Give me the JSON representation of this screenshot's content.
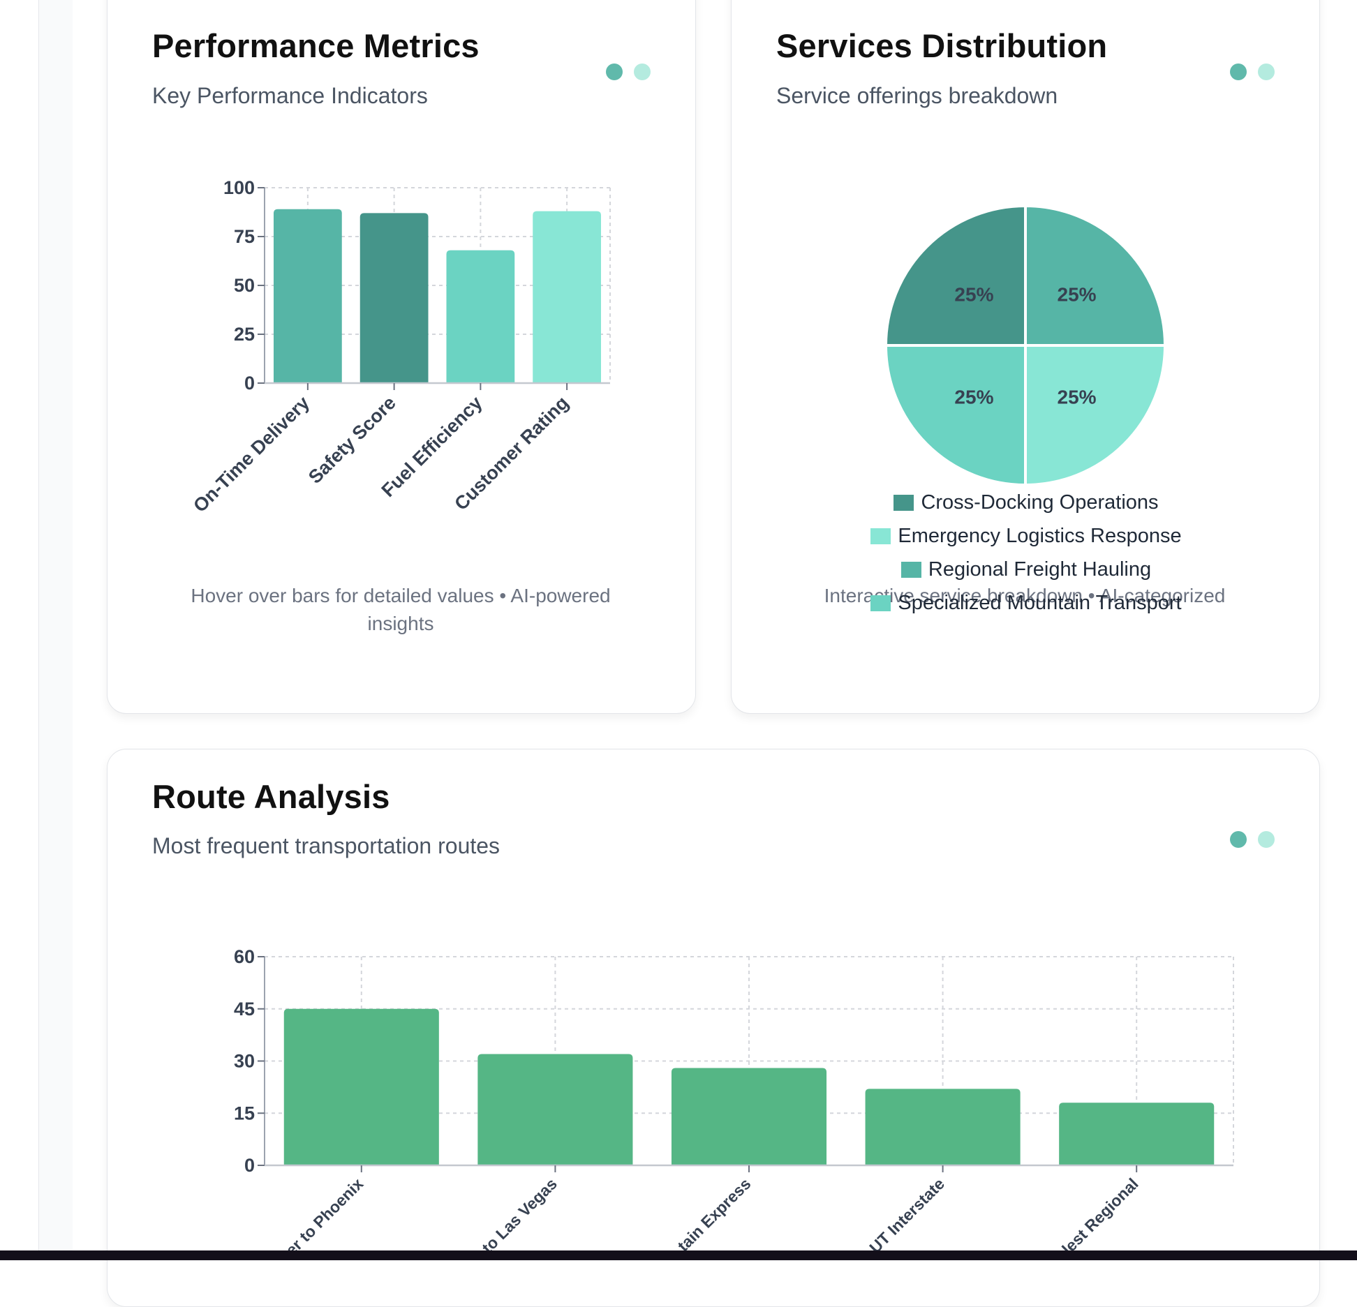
{
  "colors": {
    "teal_dark": "#45958a",
    "teal_mid": "#56b5a6",
    "teal_light": "#6bd3c2",
    "teal_pale": "#88e6d5",
    "route_green": "#55b685",
    "dot_primary": "#60b9ab",
    "dot_secondary": "#b4ebdf"
  },
  "performance": {
    "title": "Performance Metrics",
    "subtitle": "Key Performance Indicators",
    "footnote": "Hover over bars for detailed values • AI-powered insights",
    "chart_data": {
      "type": "bar",
      "categories": [
        "On-Time Delivery",
        "Safety Score",
        "Fuel Efficiency",
        "Customer Rating"
      ],
      "values": [
        89,
        87,
        68,
        88
      ],
      "colors": [
        "#56b5a6",
        "#45958a",
        "#6bd3c2",
        "#88e6d5"
      ],
      "ylim": [
        0,
        100
      ],
      "yticks": [
        0,
        25,
        50,
        75,
        100
      ],
      "grid": true,
      "title": "",
      "xlabel": "",
      "ylabel": ""
    }
  },
  "services": {
    "title": "Services Distribution",
    "subtitle": "Service offerings breakdown",
    "footnote": "Interactive service breakdown • AI-categorized",
    "chart_data": {
      "type": "pie",
      "categories": [
        "Cross-Docking Operations",
        "Emergency Logistics Response",
        "Regional Freight Hauling",
        "Specialized Mountain Transport"
      ],
      "values": [
        25,
        25,
        25,
        25
      ],
      "slice_labels": [
        "25%",
        "25%",
        "25%",
        "25%"
      ],
      "colors": [
        "#45958a",
        "#88e6d5",
        "#56b5a6",
        "#6bd3c2"
      ],
      "legend_position": "bottom",
      "title": ""
    },
    "legend": [
      {
        "label": "Cross-Docking Operations",
        "color": "#45958a"
      },
      {
        "label": "Emergency Logistics Response",
        "color": "#88e6d5"
      },
      {
        "label": "Regional Freight Hauling",
        "color": "#56b5a6"
      },
      {
        "label": "Specialized Mountain Transport",
        "color": "#6bd3c2"
      }
    ]
  },
  "routes": {
    "title": "Route Analysis",
    "subtitle": "Most frequent transportation routes",
    "chart_data": {
      "type": "bar",
      "categories": [
        "er to Phoenix",
        "to Las Vegas",
        "tain Express",
        "UT Interstate",
        "lest Regional"
      ],
      "values": [
        45,
        32,
        28,
        22,
        18
      ],
      "color": "#55b685",
      "ylim": [
        0,
        60
      ],
      "yticks": [
        0,
        15,
        30,
        45,
        60
      ],
      "grid": true,
      "title": "",
      "xlabel": "",
      "ylabel": ""
    }
  }
}
